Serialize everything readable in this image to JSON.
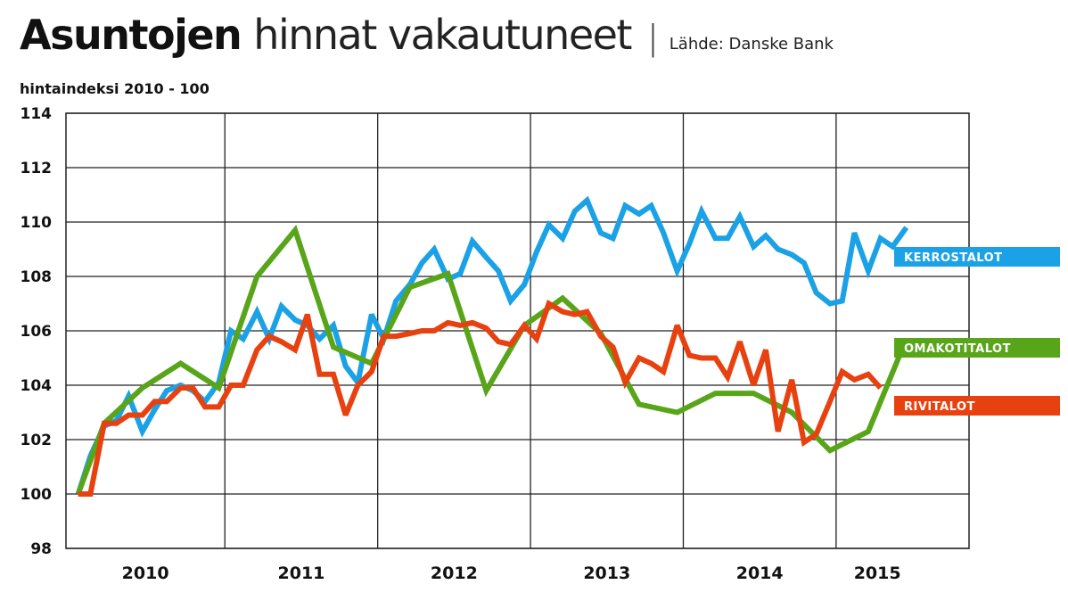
{
  "header": {
    "title_bold": "Asuntojen",
    "title_light": "hinnat vakautuneet",
    "separator": "|",
    "source": "Lähde: Danske Bank",
    "subtitle": "hintaindeksi 2010 - 100"
  },
  "chart_data": {
    "type": "line",
    "title": "Asuntojen hinnat vakautuneet",
    "ylabel": "hintaindeksi 2010 - 100",
    "ylim": [
      98,
      114
    ],
    "yticks": [
      98,
      100,
      102,
      104,
      106,
      108,
      110,
      112,
      114
    ],
    "xlim": [
      2009.92,
      2015.83
    ],
    "x_tick_labels": [
      "2010",
      "2011",
      "2012",
      "2013",
      "2014",
      "2015"
    ],
    "grid": true,
    "legend": "inline-right",
    "series": [
      {
        "name": "KERROSTALOT",
        "color": "#1ba1e6",
        "points": [
          [
            2010.0,
            100.0
          ],
          [
            2010.08,
            101.4
          ],
          [
            2010.17,
            102.5
          ],
          [
            2010.25,
            102.7
          ],
          [
            2010.33,
            103.6
          ],
          [
            2010.42,
            102.3
          ],
          [
            2010.5,
            103.1
          ],
          [
            2010.58,
            103.8
          ],
          [
            2010.67,
            104.0
          ],
          [
            2010.75,
            103.8
          ],
          [
            2010.83,
            103.4
          ],
          [
            2010.92,
            104.1
          ],
          [
            2011.0,
            106.0
          ],
          [
            2011.08,
            105.7
          ],
          [
            2011.17,
            106.7
          ],
          [
            2011.25,
            105.7
          ],
          [
            2011.33,
            106.9
          ],
          [
            2011.42,
            106.4
          ],
          [
            2011.5,
            106.2
          ],
          [
            2011.58,
            105.7
          ],
          [
            2011.67,
            106.2
          ],
          [
            2011.75,
            104.7
          ],
          [
            2011.83,
            104.1
          ],
          [
            2011.92,
            106.6
          ],
          [
            2012.0,
            105.7
          ],
          [
            2012.08,
            107.1
          ],
          [
            2012.17,
            107.7
          ],
          [
            2012.25,
            108.5
          ],
          [
            2012.33,
            109.0
          ],
          [
            2012.42,
            107.9
          ],
          [
            2012.5,
            108.1
          ],
          [
            2012.58,
            109.3
          ],
          [
            2012.67,
            108.7
          ],
          [
            2012.75,
            108.2
          ],
          [
            2012.83,
            107.1
          ],
          [
            2012.92,
            107.7
          ],
          [
            2013.0,
            108.9
          ],
          [
            2013.08,
            109.9
          ],
          [
            2013.17,
            109.4
          ],
          [
            2013.25,
            110.4
          ],
          [
            2013.33,
            110.8
          ],
          [
            2013.42,
            109.6
          ],
          [
            2013.5,
            109.4
          ],
          [
            2013.58,
            110.6
          ],
          [
            2013.67,
            110.3
          ],
          [
            2013.75,
            110.6
          ],
          [
            2013.83,
            109.6
          ],
          [
            2013.92,
            108.2
          ],
          [
            2014.0,
            109.2
          ],
          [
            2014.08,
            110.4
          ],
          [
            2014.17,
            109.4
          ],
          [
            2014.25,
            109.4
          ],
          [
            2014.33,
            110.2
          ],
          [
            2014.42,
            109.1
          ],
          [
            2014.5,
            109.5
          ],
          [
            2014.58,
            109.0
          ],
          [
            2014.67,
            108.8
          ],
          [
            2014.75,
            108.5
          ],
          [
            2014.83,
            107.4
          ],
          [
            2014.92,
            107.0
          ],
          [
            2015.0,
            107.1
          ],
          [
            2015.08,
            109.6
          ],
          [
            2015.17,
            108.2
          ],
          [
            2015.25,
            109.4
          ],
          [
            2015.33,
            109.1
          ],
          [
            2015.42,
            109.8
          ]
        ]
      },
      {
        "name": "OMAKOTITALOT",
        "color": "#58a51a",
        "points": [
          [
            2010.0,
            100.0
          ],
          [
            2010.17,
            102.6
          ],
          [
            2010.42,
            103.9
          ],
          [
            2010.67,
            104.8
          ],
          [
            2010.92,
            103.9
          ],
          [
            2011.17,
            108.0
          ],
          [
            2011.42,
            109.7
          ],
          [
            2011.67,
            105.4
          ],
          [
            2011.92,
            104.8
          ],
          [
            2012.17,
            107.6
          ],
          [
            2012.42,
            108.1
          ],
          [
            2012.67,
            103.8
          ],
          [
            2012.92,
            106.2
          ],
          [
            2013.17,
            107.2
          ],
          [
            2013.42,
            105.9
          ],
          [
            2013.67,
            103.3
          ],
          [
            2013.92,
            103.0
          ],
          [
            2014.17,
            103.7
          ],
          [
            2014.42,
            103.7
          ],
          [
            2014.67,
            103.0
          ],
          [
            2014.92,
            101.6
          ],
          [
            2015.17,
            102.3
          ],
          [
            2015.42,
            105.7
          ]
        ]
      },
      {
        "name": "RIVITALOT",
        "color": "#e84110",
        "points": [
          [
            2010.0,
            100.0
          ],
          [
            2010.08,
            100.0
          ],
          [
            2010.17,
            102.6
          ],
          [
            2010.25,
            102.6
          ],
          [
            2010.33,
            102.9
          ],
          [
            2010.42,
            102.9
          ],
          [
            2010.5,
            103.4
          ],
          [
            2010.58,
            103.4
          ],
          [
            2010.67,
            103.9
          ],
          [
            2010.75,
            103.9
          ],
          [
            2010.83,
            103.2
          ],
          [
            2010.92,
            103.2
          ],
          [
            2011.0,
            104.0
          ],
          [
            2011.08,
            104.0
          ],
          [
            2011.17,
            105.3
          ],
          [
            2011.25,
            105.8
          ],
          [
            2011.33,
            105.6
          ],
          [
            2011.42,
            105.3
          ],
          [
            2011.5,
            106.6
          ],
          [
            2011.58,
            104.4
          ],
          [
            2011.67,
            104.4
          ],
          [
            2011.75,
            102.9
          ],
          [
            2011.83,
            104.0
          ],
          [
            2011.92,
            104.5
          ],
          [
            2012.0,
            105.8
          ],
          [
            2012.08,
            105.8
          ],
          [
            2012.17,
            105.9
          ],
          [
            2012.25,
            106.0
          ],
          [
            2012.33,
            106.0
          ],
          [
            2012.42,
            106.3
          ],
          [
            2012.5,
            106.2
          ],
          [
            2012.58,
            106.3
          ],
          [
            2012.67,
            106.1
          ],
          [
            2012.75,
            105.6
          ],
          [
            2012.83,
            105.5
          ],
          [
            2012.92,
            106.2
          ],
          [
            2013.0,
            105.7
          ],
          [
            2013.08,
            107.0
          ],
          [
            2013.17,
            106.7
          ],
          [
            2013.25,
            106.6
          ],
          [
            2013.33,
            106.7
          ],
          [
            2013.42,
            105.8
          ],
          [
            2013.5,
            105.4
          ],
          [
            2013.58,
            104.1
          ],
          [
            2013.67,
            105.0
          ],
          [
            2013.75,
            104.8
          ],
          [
            2013.83,
            104.5
          ],
          [
            2013.92,
            106.2
          ],
          [
            2014.0,
            105.1
          ],
          [
            2014.08,
            105.0
          ],
          [
            2014.17,
            105.0
          ],
          [
            2014.25,
            104.3
          ],
          [
            2014.33,
            105.6
          ],
          [
            2014.42,
            104.0
          ],
          [
            2014.5,
            105.3
          ],
          [
            2014.58,
            102.3
          ],
          [
            2014.67,
            104.2
          ],
          [
            2014.75,
            101.9
          ],
          [
            2014.83,
            102.2
          ],
          [
            2014.92,
            103.4
          ],
          [
            2015.0,
            104.5
          ],
          [
            2015.08,
            104.2
          ],
          [
            2015.17,
            104.4
          ],
          [
            2015.25,
            103.9
          ]
        ]
      }
    ]
  }
}
